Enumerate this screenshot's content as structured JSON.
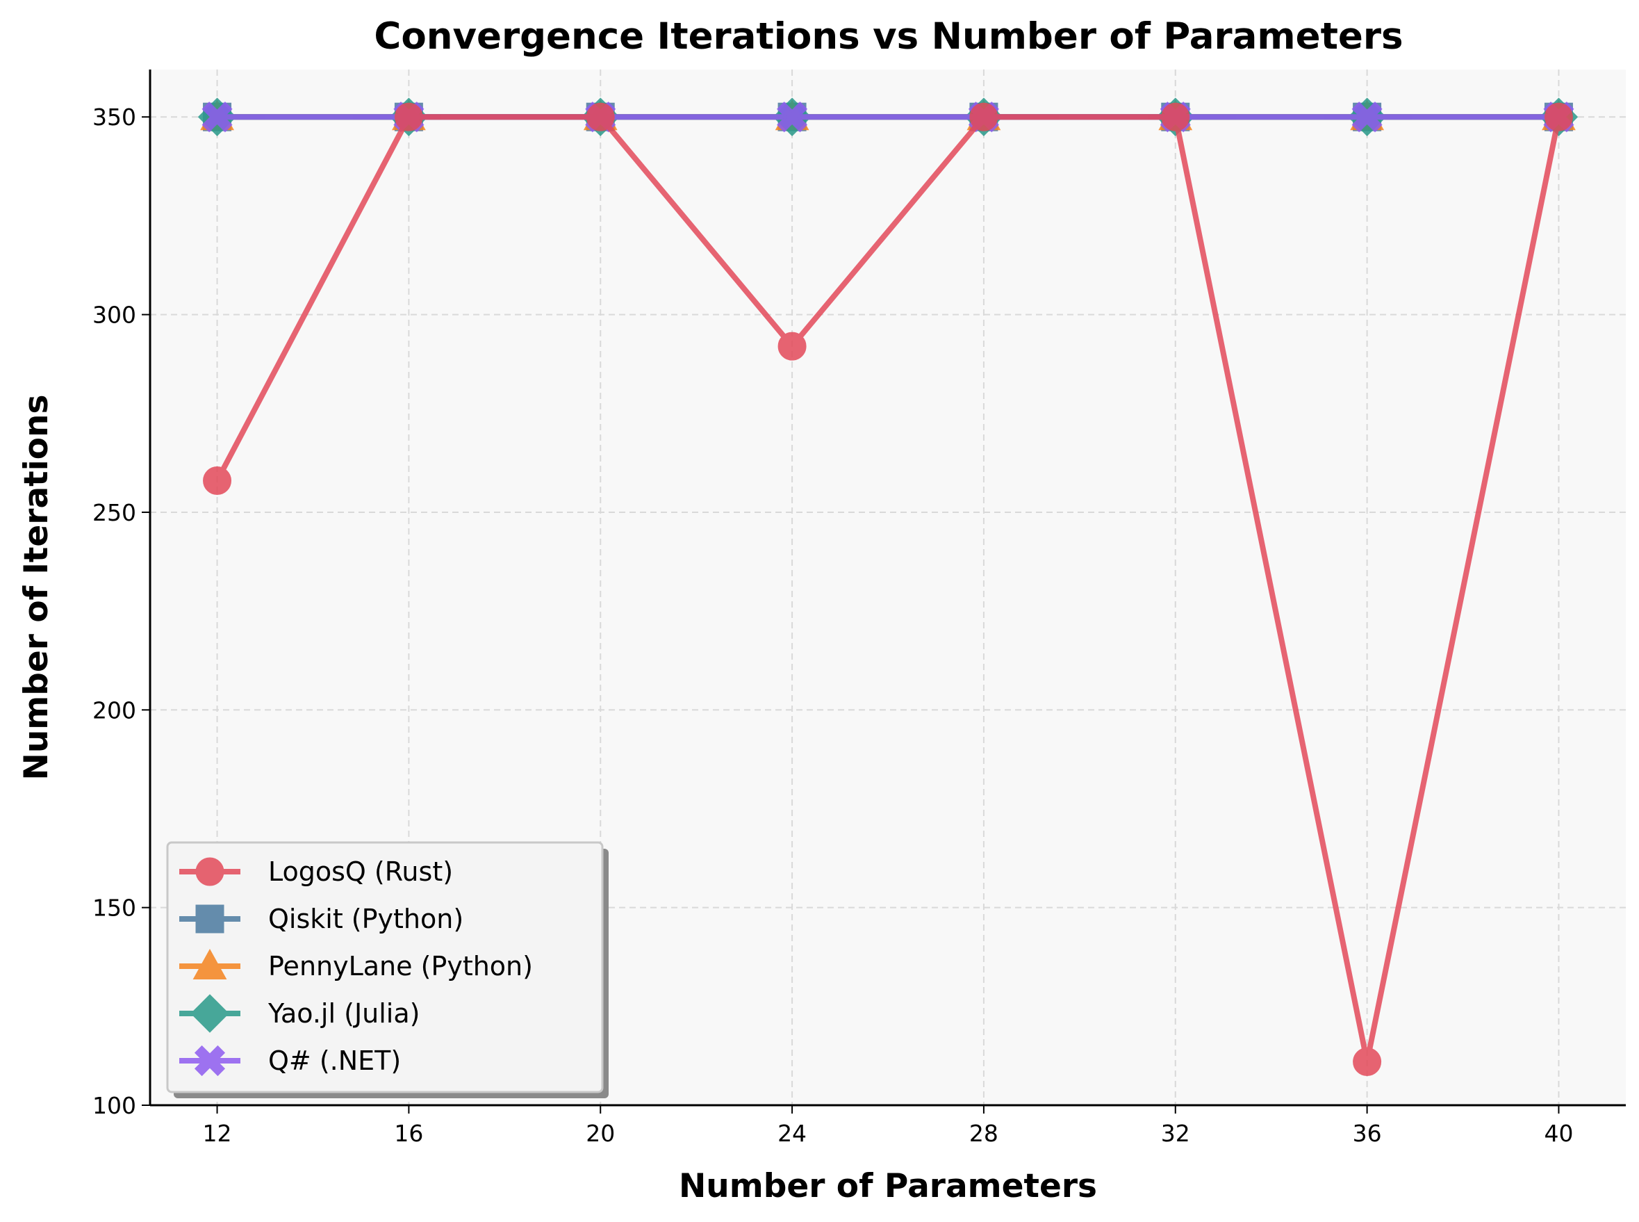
{
  "chart_data": {
    "type": "line",
    "title": "Convergence Iterations vs Number of Parameters",
    "xlabel": "Number of Parameters",
    "ylabel": "Number of Iterations",
    "x": [
      12,
      16,
      20,
      24,
      28,
      32,
      36,
      40
    ],
    "xticks": [
      12,
      16,
      20,
      24,
      28,
      32,
      36,
      40
    ],
    "yticks": [
      100,
      150,
      200,
      250,
      300,
      350
    ],
    "xlim": [
      10.6,
      41.4
    ],
    "ylim": [
      100,
      362
    ],
    "grid": true,
    "legend_position": "lower-left",
    "series": [
      {
        "name": "LogosQ (Rust)",
        "color": "#e34a5a",
        "marker": "circle",
        "values": [
          258,
          350,
          350,
          292,
          350,
          350,
          111,
          350
        ]
      },
      {
        "name": "Qiskit (Python)",
        "color": "#4c7aa0",
        "marker": "square",
        "values": [
          350,
          350,
          350,
          350,
          350,
          350,
          350,
          350
        ]
      },
      {
        "name": "PennyLane (Python)",
        "color": "#f5841f",
        "marker": "triangle",
        "values": [
          350,
          350,
          350,
          350,
          350,
          350,
          350,
          350
        ]
      },
      {
        "name": "Yao.jl (Julia)",
        "color": "#2a9a8a",
        "marker": "diamond",
        "values": [
          350,
          350,
          350,
          350,
          350,
          350,
          350,
          350
        ]
      },
      {
        "name": "Q# (.NET)",
        "color": "#8e5cf0",
        "marker": "x",
        "values": [
          350,
          350,
          350,
          350,
          350,
          350,
          350,
          350
        ]
      }
    ]
  }
}
